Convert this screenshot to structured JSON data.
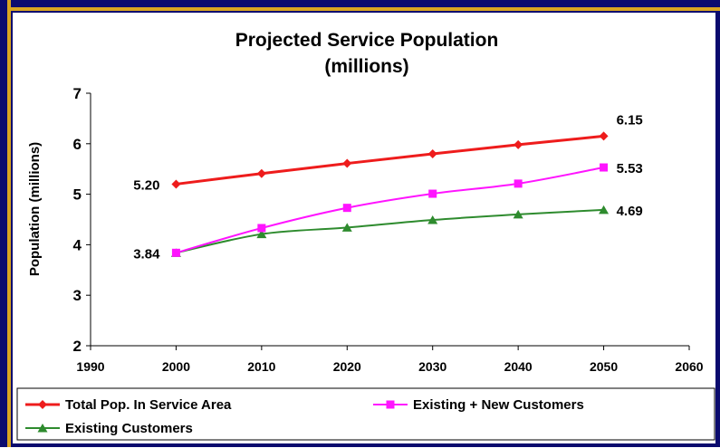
{
  "chart_data": {
    "type": "line",
    "title": "Projected Service Population",
    "subtitle": "(millions)",
    "ylabel": "Population (millions)",
    "xlabel": "",
    "xlim": [
      1990,
      2060
    ],
    "ylim": [
      2,
      7
    ],
    "x_ticks": [
      "1990",
      "2000",
      "2010",
      "2020",
      "2030",
      "2040",
      "2050",
      "2060"
    ],
    "y_ticks": [
      "2",
      "3",
      "4",
      "5",
      "6",
      "7"
    ],
    "x": [
      2000,
      2010,
      2020,
      2030,
      2040,
      2050
    ],
    "grid": false,
    "legend_placement": "bottom",
    "series": [
      {
        "name": "Total Pop. In Service Area",
        "color": "#ee1c1c",
        "marker": "diamond",
        "values": [
          5.2,
          5.41,
          5.61,
          5.8,
          5.98,
          6.15
        ]
      },
      {
        "name": "Existing + New Customers",
        "color": "#ff14ff",
        "marker": "square",
        "values": [
          3.84,
          4.33,
          4.73,
          5.01,
          5.21,
          5.53
        ]
      },
      {
        "name": "Existing Customers",
        "color": "#2e8b2e",
        "marker": "triangle",
        "values": [
          3.84,
          4.21,
          4.34,
          4.49,
          4.6,
          4.69
        ]
      }
    ],
    "annotations": [
      {
        "text": "5.20",
        "x": 2000,
        "y": 5.2,
        "placement": "left"
      },
      {
        "text": "3.84",
        "x": 2000,
        "y": 3.84,
        "placement": "left"
      },
      {
        "text": "6.15",
        "x": 2050,
        "y": 6.15,
        "placement": "above-right"
      },
      {
        "text": "5.53",
        "x": 2050,
        "y": 5.53,
        "placement": "right"
      },
      {
        "text": "4.69",
        "x": 2050,
        "y": 4.69,
        "placement": "right"
      }
    ]
  }
}
